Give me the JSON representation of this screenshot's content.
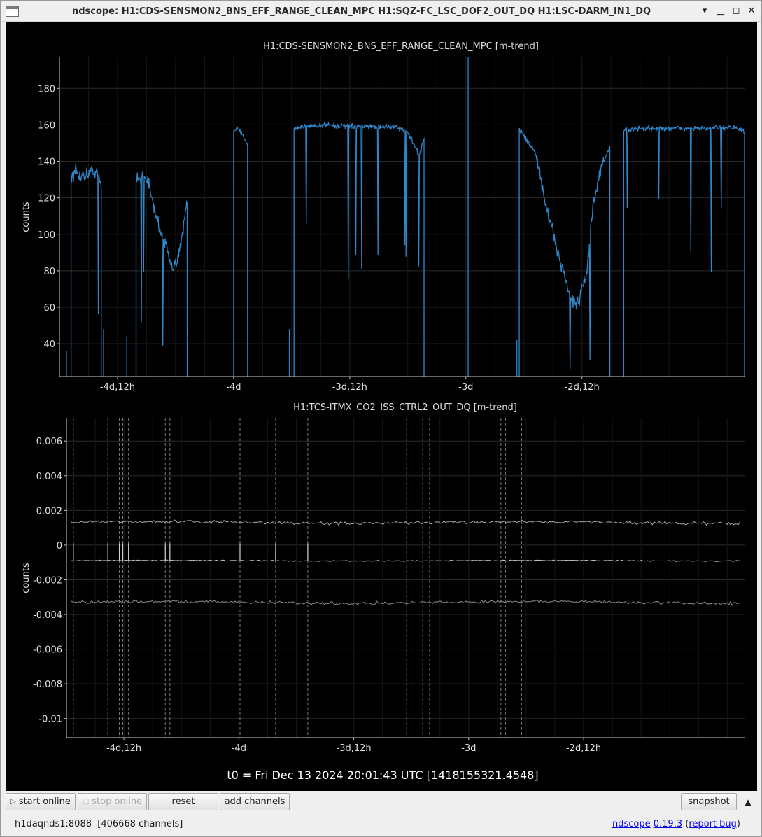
{
  "window": {
    "title": "ndscope: H1:CDS-SENSMON2_BNS_EFF_RANGE_CLEAN_MPC H1:SQZ-FC_LSC_DOF2_OUT_DQ H1:LSC-DARM_IN1_DQ",
    "buttons": [
      "minimize",
      "maximize",
      "close"
    ]
  },
  "plots": [
    {
      "title": "H1:CDS-SENSMON2_BNS_EFF_RANGE_CLEAN_MPC [m-trend]",
      "ylabel": "counts",
      "yticks": [
        "180",
        "160",
        "140",
        "120",
        "100",
        "80",
        "60",
        "40"
      ],
      "xticks": [
        "-4d,12h",
        "-4d",
        "-3d,12h",
        "-3d",
        "-2d,12h"
      ]
    },
    {
      "title": "H1:TCS-ITMX_CO2_ISS_CTRL2_OUT_DQ [m-trend]",
      "ylabel": "counts",
      "yticks": [
        "0.006",
        "0.004",
        "0.002",
        "0",
        "-0.002",
        "-0.004",
        "-0.006",
        "-0.008",
        "-0.01"
      ],
      "xticks": [
        "-4d,12h",
        "-4d",
        "-3d,12h",
        "-3d",
        "-2d,12h"
      ]
    }
  ],
  "t0_label": "t0 = Fri Dec 13 2024 20:01:43 UTC [1418155321.4548]",
  "chart_data": [
    {
      "type": "line",
      "title": "H1:CDS-SENSMON2_BNS_EFF_RANGE_CLEAN_MPC [m-trend]",
      "xlabel": "",
      "ylabel": "counts",
      "x_unit": "days relative to t0",
      "xlim": [
        -4.75,
        -1.8
      ],
      "ylim": [
        22,
        197
      ],
      "grid": true,
      "color": "#2f86c8",
      "segments": [
        {
          "x": [
            -4.7,
            -4.68,
            -4.64,
            -4.61,
            -4.59,
            -4.57
          ],
          "y": [
            131,
            133,
            132,
            135,
            134,
            127
          ]
        },
        {
          "x": [
            -4.42,
            -4.4,
            -4.37,
            -4.34,
            -4.31,
            -4.28,
            -4.25,
            -4.22,
            -4.2
          ],
          "y": [
            129,
            132,
            130,
            112,
            100,
            88,
            82,
            100,
            118
          ]
        },
        {
          "x": [
            -4.0,
            -3.98,
            -3.96,
            -3.94
          ],
          "y": [
            156,
            158,
            154,
            150
          ]
        },
        {
          "x": [
            -3.74,
            -3.7,
            -3.6,
            -3.5,
            -3.4,
            -3.3,
            -3.25,
            -3.2,
            -3.18
          ],
          "y": [
            158,
            159,
            160,
            159,
            159,
            159,
            156,
            143,
            153
          ]
        },
        {
          "x": [
            -2.77,
            -2.75,
            -2.7,
            -2.66,
            -2.62,
            -2.58,
            -2.55,
            -2.52,
            -2.48,
            -2.45,
            -2.42,
            -2.38
          ],
          "y": [
            158,
            154,
            145,
            118,
            98,
            80,
            65,
            62,
            78,
            118,
            135,
            148
          ]
        },
        {
          "x": [
            -2.32,
            -2.25,
            -2.15,
            -2.05,
            -1.95,
            -1.85,
            -1.8
          ],
          "y": [
            157,
            158,
            158,
            158,
            158,
            159,
            156
          ]
        }
      ]
    },
    {
      "type": "line",
      "title": "H1:TCS-ITMX_CO2_ISS_CTRL2_OUT_DQ [m-trend]",
      "xlabel": "",
      "ylabel": "counts",
      "x_unit": "days relative to t0",
      "xlim": [
        -4.75,
        -1.8
      ],
      "ylim": [
        -0.0111,
        0.0073
      ],
      "grid": true,
      "series": [
        {
          "role": "max",
          "color": "#a9a9a9",
          "mean": 0.0013,
          "noise": 0.00013
        },
        {
          "role": "mean",
          "color": "#cfcfcf",
          "mean": -0.0009,
          "noise": 4e-05
        },
        {
          "role": "min",
          "color": "#8a8a8a",
          "mean": -0.0033,
          "noise": 0.00013
        }
      ],
      "spike_times": [
        -4.72,
        -4.57,
        -4.52,
        -4.505,
        -4.48,
        -4.32,
        -4.3,
        -3.995,
        -3.84,
        -3.7,
        -3.27,
        -3.2,
        -3.17,
        -2.86,
        -2.84,
        -2.77
      ]
    }
  ],
  "toolbar": {
    "start_online": "start online",
    "stop_online": "stop online",
    "reset": "reset",
    "add_channels": "add channels",
    "snapshot": "snapshot"
  },
  "status": {
    "server": "h1daqnds1:8088",
    "channels": "[406668 channels]",
    "app_name": "ndscope",
    "version": "0.19.3",
    "report_bug": "report bug"
  }
}
